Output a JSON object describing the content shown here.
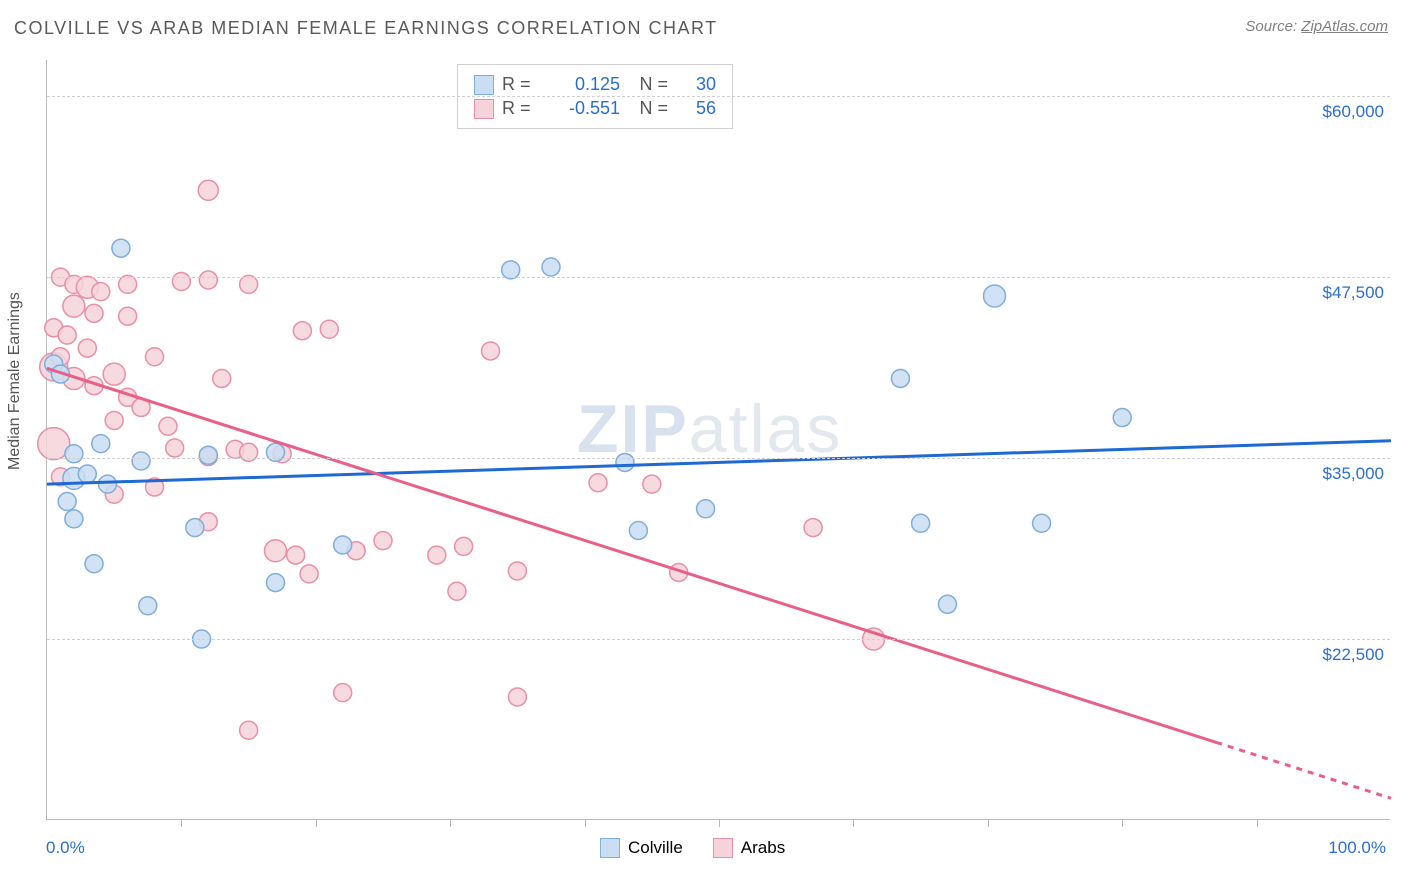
{
  "title": "COLVILLE VS ARAB MEDIAN FEMALE EARNINGS CORRELATION CHART",
  "source_label": "Source:",
  "source_name": "ZipAtlas.com",
  "ylabel": "Median Female Earnings",
  "watermark_1": "ZIP",
  "watermark_2": "atlas",
  "chart": {
    "type": "scatter",
    "xlim": [
      0,
      100
    ],
    "ylim": [
      10000,
      62500
    ],
    "x_tick_positions": [
      10,
      20,
      30,
      40,
      50,
      60,
      70,
      80,
      90
    ],
    "y_gridlines": [
      22500,
      35000,
      47500,
      60000
    ],
    "y_tick_labels": [
      "$22,500",
      "$35,000",
      "$47,500",
      "$60,000"
    ],
    "x_axis_labels": {
      "left": "0.0%",
      "right": "100.0%"
    },
    "background_color": "#ffffff",
    "grid_color": "#d0d0d0",
    "axis_color": "#bbbbbb",
    "ytick_label_color": "#2a6fcf",
    "series": [
      {
        "name": "Colville",
        "fill": "#c9ddf3",
        "stroke": "#7faeda",
        "regression": {
          "y_at_x0": 33200,
          "y_at_x100": 36200,
          "color": "#1f69d2",
          "width": 3
        },
        "R": "0.125",
        "N": "30",
        "points": [
          {
            "x": 0.5,
            "y": 41500,
            "r": 9
          },
          {
            "x": 5.5,
            "y": 49500,
            "r": 9
          },
          {
            "x": 34.5,
            "y": 48000,
            "r": 9
          },
          {
            "x": 37.5,
            "y": 48200,
            "r": 9
          },
          {
            "x": 70.5,
            "y": 46200,
            "r": 11
          },
          {
            "x": 63.5,
            "y": 40500,
            "r": 9
          },
          {
            "x": 80,
            "y": 37800,
            "r": 9
          },
          {
            "x": 43,
            "y": 34700,
            "r": 9
          },
          {
            "x": 49,
            "y": 31500,
            "r": 9
          },
          {
            "x": 44,
            "y": 30000,
            "r": 9
          },
          {
            "x": 65,
            "y": 30500,
            "r": 9
          },
          {
            "x": 74,
            "y": 30500,
            "r": 9
          },
          {
            "x": 67,
            "y": 24900,
            "r": 9
          },
          {
            "x": 4,
            "y": 36000,
            "r": 9
          },
          {
            "x": 2,
            "y": 33600,
            "r": 11
          },
          {
            "x": 3,
            "y": 33900,
            "r": 9
          },
          {
            "x": 1.5,
            "y": 32000,
            "r": 9
          },
          {
            "x": 2,
            "y": 30800,
            "r": 9
          },
          {
            "x": 3.5,
            "y": 27700,
            "r": 9
          },
          {
            "x": 7,
            "y": 34800,
            "r": 9
          },
          {
            "x": 7.5,
            "y": 24800,
            "r": 9
          },
          {
            "x": 11.5,
            "y": 22500,
            "r": 9
          },
          {
            "x": 12,
            "y": 35200,
            "r": 9
          },
          {
            "x": 11,
            "y": 30200,
            "r": 9
          },
          {
            "x": 17,
            "y": 35400,
            "r": 9
          },
          {
            "x": 17,
            "y": 26400,
            "r": 9
          },
          {
            "x": 22,
            "y": 29000,
            "r": 9
          },
          {
            "x": 4.5,
            "y": 33200,
            "r": 9
          },
          {
            "x": 2,
            "y": 35300,
            "r": 9
          },
          {
            "x": 1,
            "y": 40800,
            "r": 9
          }
        ]
      },
      {
        "name": "Arabs",
        "fill": "#f6d2db",
        "stroke": "#e98fa6",
        "regression": {
          "y_at_x0": 41200,
          "y_at_x100": 11500,
          "color": "#e85f87",
          "width": 3,
          "dashed_after_x": 87
        },
        "R": "-0.551",
        "N": "56",
        "points": [
          {
            "x": 12,
            "y": 53500,
            "r": 10
          },
          {
            "x": 1,
            "y": 47500,
            "r": 9
          },
          {
            "x": 2,
            "y": 47000,
            "r": 9
          },
          {
            "x": 3,
            "y": 46800,
            "r": 11
          },
          {
            "x": 4,
            "y": 46500,
            "r": 9
          },
          {
            "x": 6,
            "y": 47000,
            "r": 9
          },
          {
            "x": 2,
            "y": 45500,
            "r": 11
          },
          {
            "x": 3.5,
            "y": 45000,
            "r": 9
          },
          {
            "x": 6,
            "y": 44800,
            "r": 9
          },
          {
            "x": 10,
            "y": 47200,
            "r": 9
          },
          {
            "x": 12,
            "y": 47300,
            "r": 9
          },
          {
            "x": 15,
            "y": 47000,
            "r": 9
          },
          {
            "x": 19,
            "y": 43800,
            "r": 9
          },
          {
            "x": 21,
            "y": 43900,
            "r": 9
          },
          {
            "x": 33,
            "y": 42400,
            "r": 9
          },
          {
            "x": 0.5,
            "y": 44000,
            "r": 9
          },
          {
            "x": 0.5,
            "y": 41300,
            "r": 14
          },
          {
            "x": 1.5,
            "y": 43500,
            "r": 9
          },
          {
            "x": 1,
            "y": 42000,
            "r": 9
          },
          {
            "x": 3,
            "y": 42600,
            "r": 9
          },
          {
            "x": 2,
            "y": 40500,
            "r": 11
          },
          {
            "x": 3.5,
            "y": 40000,
            "r": 9
          },
          {
            "x": 5,
            "y": 40800,
            "r": 11
          },
          {
            "x": 6,
            "y": 39200,
            "r": 9
          },
          {
            "x": 5,
            "y": 37600,
            "r": 9
          },
          {
            "x": 8,
            "y": 42000,
            "r": 9
          },
          {
            "x": 7,
            "y": 38500,
            "r": 9
          },
          {
            "x": 9,
            "y": 37200,
            "r": 9
          },
          {
            "x": 13,
            "y": 40500,
            "r": 9
          },
          {
            "x": 0.5,
            "y": 36000,
            "r": 16
          },
          {
            "x": 9.5,
            "y": 35700,
            "r": 9
          },
          {
            "x": 12,
            "y": 35100,
            "r": 9
          },
          {
            "x": 14,
            "y": 35600,
            "r": 9
          },
          {
            "x": 1,
            "y": 33700,
            "r": 9
          },
          {
            "x": 5,
            "y": 32500,
            "r": 9
          },
          {
            "x": 8,
            "y": 33000,
            "r": 9
          },
          {
            "x": 12,
            "y": 30600,
            "r": 9
          },
          {
            "x": 15,
            "y": 35400,
            "r": 9
          },
          {
            "x": 17.5,
            "y": 35300,
            "r": 9
          },
          {
            "x": 17,
            "y": 28600,
            "r": 11
          },
          {
            "x": 18.5,
            "y": 28300,
            "r": 9
          },
          {
            "x": 19.5,
            "y": 27000,
            "r": 9
          },
          {
            "x": 23,
            "y": 28600,
            "r": 9
          },
          {
            "x": 25,
            "y": 29300,
            "r": 9
          },
          {
            "x": 29,
            "y": 28300,
            "r": 9
          },
          {
            "x": 31,
            "y": 28900,
            "r": 9
          },
          {
            "x": 30.5,
            "y": 25800,
            "r": 9
          },
          {
            "x": 35,
            "y": 27200,
            "r": 9
          },
          {
            "x": 41,
            "y": 33300,
            "r": 9
          },
          {
            "x": 45,
            "y": 33200,
            "r": 9
          },
          {
            "x": 47,
            "y": 27100,
            "r": 9
          },
          {
            "x": 57,
            "y": 30200,
            "r": 9
          },
          {
            "x": 61.5,
            "y": 22500,
            "r": 11
          },
          {
            "x": 22,
            "y": 18800,
            "r": 9
          },
          {
            "x": 35,
            "y": 18500,
            "r": 9
          },
          {
            "x": 15,
            "y": 16200,
            "r": 9
          }
        ]
      }
    ]
  },
  "legend_top": {
    "rows": [
      {
        "swatch_fill": "#c9ddf3",
        "swatch_stroke": "#7faeda",
        "R_label": "R =",
        "R": "0.125",
        "N_label": "N =",
        "N": "30"
      },
      {
        "swatch_fill": "#f6d2db",
        "swatch_stroke": "#e98fa6",
        "R_label": "R =",
        "R": "-0.551",
        "N_label": "N =",
        "N": "56"
      }
    ]
  },
  "legend_bottom": {
    "items": [
      {
        "swatch_fill": "#c9ddf3",
        "swatch_stroke": "#7faeda",
        "label": "Colville"
      },
      {
        "swatch_fill": "#f6d2db",
        "swatch_stroke": "#e98fa6",
        "label": "Arabs"
      }
    ]
  }
}
